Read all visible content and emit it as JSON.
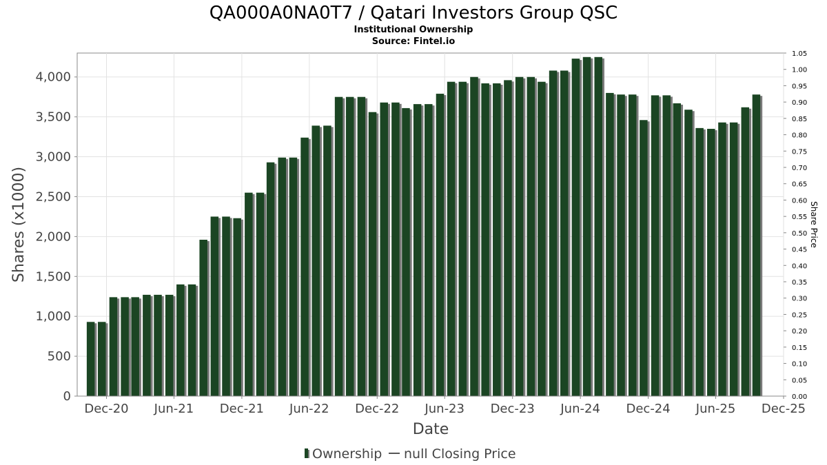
{
  "chart_data": {
    "type": "bar",
    "title": "QA000A0NA0T7 / Qatari Investors Group QSC",
    "subtitles": [
      "Institutional Ownership",
      "Source: Fintel.io"
    ],
    "xlabel": "Date",
    "ylabel": "Shares (x1000)",
    "y2label": "Share Price",
    "ylim": [
      0,
      4300
    ],
    "y2lim": [
      0,
      1.05
    ],
    "x_range": [
      "2020-09-13",
      "2025-12-01"
    ],
    "x_ticks": [
      "Dec-20",
      "Jun-21",
      "Dec-21",
      "Jun-22",
      "Dec-22",
      "Jun-23",
      "Dec-23",
      "Jun-24",
      "Dec-24",
      "Jun-25",
      "Dec-25"
    ],
    "y_ticks": [
      "0",
      "500",
      "1,000",
      "1,500",
      "2,000",
      "2,500",
      "3,000",
      "3,500",
      "4,000"
    ],
    "y2_ticks": [
      "0.00",
      "0.05",
      "0.10",
      "0.15",
      "0.20",
      "0.25",
      "0.30",
      "0.35",
      "0.40",
      "0.45",
      "0.50",
      "0.55",
      "0.60",
      "0.65",
      "0.70",
      "0.75",
      "0.80",
      "0.85",
      "0.90",
      "0.95",
      "1.00",
      "1.05"
    ],
    "grid": true,
    "legend_position": "bottom",
    "series": [
      {
        "name": "Ownership",
        "color": "#1b4523",
        "shadow_color": "#7a7a7a",
        "x": [
          "2020-10-31",
          "2020-11-30",
          "2020-12-31",
          "2021-01-31",
          "2021-02-28",
          "2021-03-31",
          "2021-04-30",
          "2021-05-31",
          "2021-06-30",
          "2021-07-31",
          "2021-08-31",
          "2021-09-30",
          "2021-10-31",
          "2021-11-30",
          "2021-12-31",
          "2022-01-31",
          "2022-02-28",
          "2022-03-31",
          "2022-04-30",
          "2022-05-31",
          "2022-06-30",
          "2022-07-31",
          "2022-08-31",
          "2022-09-30",
          "2022-10-31",
          "2022-11-30",
          "2022-12-31",
          "2023-01-31",
          "2023-02-28",
          "2023-03-31",
          "2023-04-30",
          "2023-05-31",
          "2023-06-30",
          "2023-07-31",
          "2023-08-31",
          "2023-09-30",
          "2023-10-31",
          "2023-11-30",
          "2023-12-31",
          "2024-01-31",
          "2024-02-29",
          "2024-03-31",
          "2024-04-30",
          "2024-05-31",
          "2024-06-30",
          "2024-07-31",
          "2024-08-31",
          "2024-09-30",
          "2024-10-31",
          "2024-11-30",
          "2024-12-31",
          "2025-01-31",
          "2025-02-28",
          "2025-03-31",
          "2025-04-30",
          "2025-05-31",
          "2025-06-30",
          "2025-07-31",
          "2025-08-31",
          "2025-09-30"
        ],
        "values": [
          930,
          930,
          1240,
          1240,
          1240,
          1270,
          1270,
          1270,
          1400,
          1400,
          1960,
          2250,
          2250,
          2230,
          2550,
          2550,
          2930,
          2990,
          2990,
          3240,
          3390,
          3390,
          3750,
          3750,
          3750,
          3560,
          3680,
          3680,
          3610,
          3660,
          3660,
          3790,
          3940,
          3940,
          4000,
          3920,
          3920,
          3960,
          4000,
          4000,
          3940,
          4080,
          4080,
          4230,
          4250,
          4250,
          3800,
          3780,
          3780,
          3460,
          3770,
          3770,
          3670,
          3590,
          3360,
          3350,
          3430,
          3430,
          3620,
          3780
        ]
      },
      {
        "name": "null Closing Price",
        "values": []
      }
    ]
  },
  "legend": {
    "ownership_label": "Ownership",
    "price_label": "null Closing Price"
  }
}
